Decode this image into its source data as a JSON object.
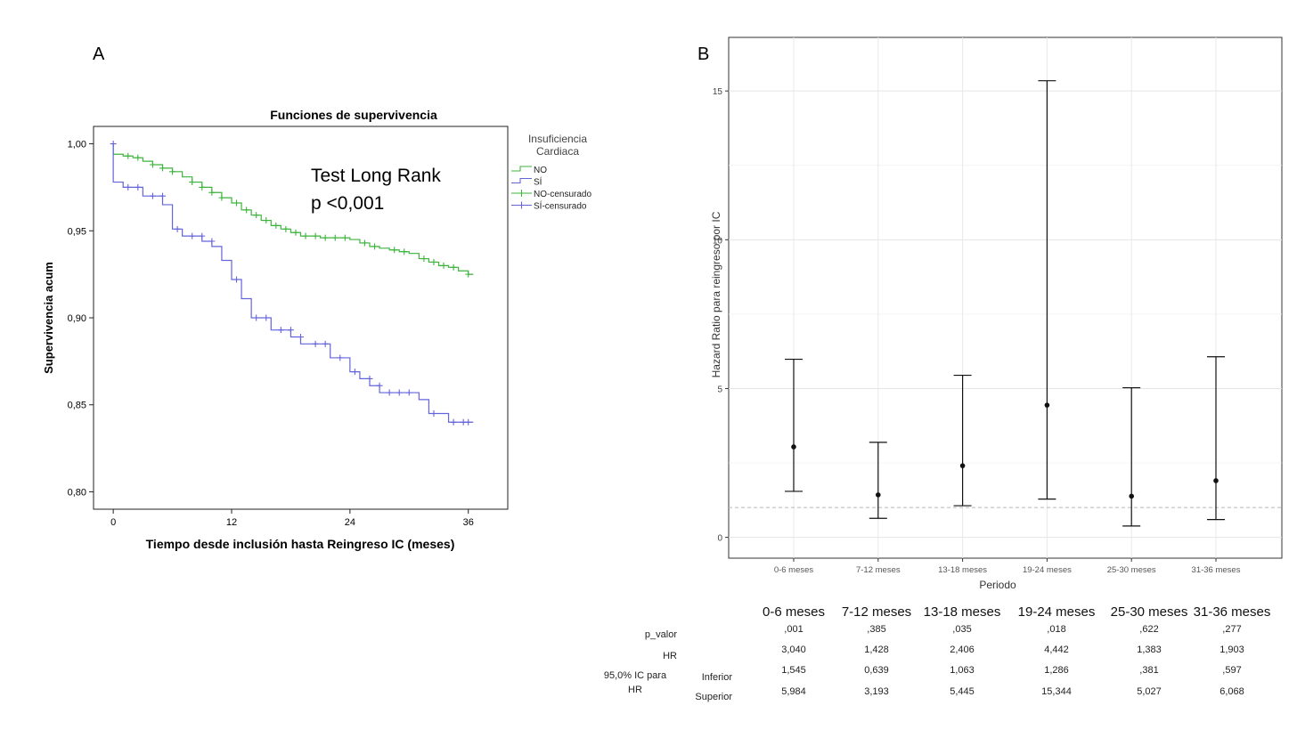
{
  "panel_a": {
    "label": "A",
    "annotation": [
      "Test Long Rank",
      "p <0,001"
    ]
  },
  "panel_b": {
    "label": "B"
  },
  "table": {
    "columns": [
      "0-6 meses",
      "7-12 meses",
      "13-18 meses",
      "19-24 meses",
      "25-30 meses",
      "31-36 meses"
    ],
    "row_labels": {
      "p_valor": "p_valor",
      "hr": "HR",
      "ic_line1": "95,0% IC para",
      "ic_line2": "HR",
      "inferior": "Inferior",
      "superior": "Superior"
    },
    "p_valor": [
      ",001",
      ",385",
      ",035",
      ",018",
      ",622",
      ",277"
    ],
    "hr": [
      "3,040",
      "1,428",
      "2,406",
      "4,442",
      "1,383",
      "1,903"
    ],
    "inferior": [
      "1,545",
      "0,639",
      "1,063",
      "1,286",
      ",381",
      ",597"
    ],
    "superior": [
      "5,984",
      "3,193",
      "5,445",
      "15,344",
      "5,027",
      "6,068"
    ]
  },
  "chart_data": [
    {
      "type": "line",
      "title": "Funciones de supervivencia",
      "xlabel": "Tiempo desde inclusión hasta Reingreso IC (meses)",
      "ylabel": "Supervivencia acum",
      "xlim": [
        -2,
        40
      ],
      "ylim": [
        0.79,
        1.01
      ],
      "xticks": [
        0,
        12,
        24,
        36
      ],
      "yticks": [
        0.8,
        0.85,
        0.9,
        0.95,
        1.0
      ],
      "ytick_labels": [
        "0,80",
        "0,85",
        "0,90",
        "0,95",
        "1,00"
      ],
      "grid": false,
      "legend": {
        "title": [
          "Insuficiencia",
          "Cardiaca"
        ],
        "position": "top-right",
        "entries": [
          "NO",
          "SÍ",
          "NO-censurado",
          "SÍ-censurado"
        ]
      },
      "series": [
        {
          "name": "NO",
          "color": "#3cb43c",
          "steps": [
            [
              0,
              1.0
            ],
            [
              0,
              0.994
            ],
            [
              1,
              0.993
            ],
            [
              2,
              0.992
            ],
            [
              3,
              0.99
            ],
            [
              4,
              0.988
            ],
            [
              5,
              0.986
            ],
            [
              6,
              0.984
            ],
            [
              7,
              0.981
            ],
            [
              8,
              0.978
            ],
            [
              9,
              0.975
            ],
            [
              10,
              0.972
            ],
            [
              11,
              0.969
            ],
            [
              12,
              0.966
            ],
            [
              13,
              0.962
            ],
            [
              14,
              0.959
            ],
            [
              15,
              0.956
            ],
            [
              16,
              0.953
            ],
            [
              17,
              0.951
            ],
            [
              18,
              0.949
            ],
            [
              19,
              0.947
            ],
            [
              20,
              0.947
            ],
            [
              21,
              0.946
            ],
            [
              22,
              0.946
            ],
            [
              23,
              0.946
            ],
            [
              24,
              0.945
            ],
            [
              25,
              0.943
            ],
            [
              26,
              0.941
            ],
            [
              27,
              0.94
            ],
            [
              28,
              0.939
            ],
            [
              29,
              0.938
            ],
            [
              30,
              0.937
            ],
            [
              31,
              0.934
            ],
            [
              32,
              0.932
            ],
            [
              33,
              0.93
            ],
            [
              34,
              0.929
            ],
            [
              35,
              0.927
            ],
            [
              36,
              0.925
            ],
            [
              36.5,
              0.925
            ]
          ],
          "censored": [
            [
              1.5,
              0.993
            ],
            [
              2.5,
              0.992
            ],
            [
              4,
              0.988
            ],
            [
              5,
              0.986
            ],
            [
              6,
              0.984
            ],
            [
              8,
              0.978
            ],
            [
              9,
              0.975
            ],
            [
              10,
              0.972
            ],
            [
              11,
              0.969
            ],
            [
              12.5,
              0.966
            ],
            [
              13.5,
              0.962
            ],
            [
              14.5,
              0.959
            ],
            [
              15.5,
              0.956
            ],
            [
              16.5,
              0.953
            ],
            [
              17.5,
              0.951
            ],
            [
              18.5,
              0.949
            ],
            [
              19.5,
              0.947
            ],
            [
              20.5,
              0.947
            ],
            [
              21.5,
              0.946
            ],
            [
              22.5,
              0.946
            ],
            [
              23.5,
              0.946
            ],
            [
              25.5,
              0.943
            ],
            [
              26.5,
              0.941
            ],
            [
              28.5,
              0.939
            ],
            [
              29.5,
              0.938
            ],
            [
              31.5,
              0.934
            ],
            [
              32.5,
              0.932
            ],
            [
              33.5,
              0.93
            ],
            [
              34.5,
              0.929
            ],
            [
              36,
              0.925
            ]
          ]
        },
        {
          "name": "SÍ",
          "color": "#6464dc",
          "steps": [
            [
              0,
              1.0
            ],
            [
              0,
              0.978
            ],
            [
              1,
              0.975
            ],
            [
              3,
              0.97
            ],
            [
              5,
              0.965
            ],
            [
              6,
              0.951
            ],
            [
              7,
              0.947
            ],
            [
              9,
              0.944
            ],
            [
              10,
              0.941
            ],
            [
              11,
              0.933
            ],
            [
              12,
              0.922
            ],
            [
              13,
              0.911
            ],
            [
              14,
              0.9
            ],
            [
              16,
              0.893
            ],
            [
              18,
              0.889
            ],
            [
              19,
              0.885
            ],
            [
              22,
              0.877
            ],
            [
              24,
              0.869
            ],
            [
              25,
              0.865
            ],
            [
              26,
              0.861
            ],
            [
              27,
              0.857
            ],
            [
              31,
              0.853
            ],
            [
              32,
              0.845
            ],
            [
              34,
              0.84
            ],
            [
              36,
              0.84
            ],
            [
              36.5,
              0.84
            ]
          ],
          "censored": [
            [
              0,
              1.0
            ],
            [
              1.5,
              0.975
            ],
            [
              2.5,
              0.975
            ],
            [
              4,
              0.97
            ],
            [
              5,
              0.97
            ],
            [
              6.5,
              0.951
            ],
            [
              8,
              0.947
            ],
            [
              9,
              0.947
            ],
            [
              10,
              0.944
            ],
            [
              12.5,
              0.922
            ],
            [
              14.5,
              0.9
            ],
            [
              15.5,
              0.9
            ],
            [
              17,
              0.893
            ],
            [
              18,
              0.893
            ],
            [
              19,
              0.889
            ],
            [
              20.5,
              0.885
            ],
            [
              21.5,
              0.885
            ],
            [
              23,
              0.877
            ],
            [
              24.5,
              0.869
            ],
            [
              26,
              0.865
            ],
            [
              27,
              0.861
            ],
            [
              28,
              0.857
            ],
            [
              29,
              0.857
            ],
            [
              30,
              0.857
            ],
            [
              32.5,
              0.845
            ],
            [
              34.5,
              0.84
            ],
            [
              35.5,
              0.84
            ],
            [
              36,
              0.84
            ]
          ]
        }
      ]
    },
    {
      "type": "scatter",
      "xlabel": "Periodo",
      "ylabel": "Hazard Ratio para reingreso por IC",
      "ylim": [
        -0.7,
        16.8
      ],
      "yticks": [
        0,
        5,
        10,
        15
      ],
      "grid": true,
      "reference_line": 1,
      "categories": [
        "0-6 meses",
        "7-12 meses",
        "13-18 meses",
        "19-24 meses",
        "25-30 meses",
        "31-36 meses"
      ],
      "series": [
        {
          "values": [
            3.04,
            1.428,
            2.406,
            4.442,
            1.383,
            1.903
          ],
          "lower": [
            1.545,
            0.639,
            1.063,
            1.286,
            0.381,
            0.597
          ],
          "upper": [
            5.984,
            3.193,
            5.445,
            15.344,
            5.027,
            6.068
          ]
        }
      ]
    }
  ]
}
